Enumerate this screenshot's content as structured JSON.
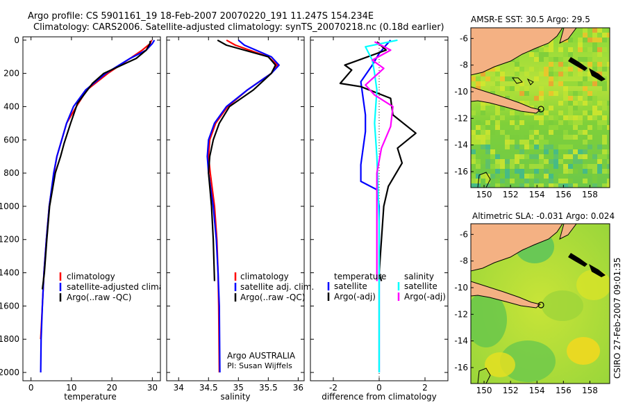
{
  "header": {
    "line1": "Argo profile: CS 5901161_19 18-Feb-2007 20070220_191 11.247S 154.234E",
    "line2": "Climatology: CARS2006. Satellite-adjusted climatology: synTS_20070218.nc (0.18d earlier)"
  },
  "side_label": "CSIRO 27-Feb-2007 09:01:35",
  "colors": {
    "clim": "#ff0000",
    "sat": "#0000ff",
    "argo": "#000000",
    "magenta": "#ff00ff",
    "cyan": "#00ffff",
    "land": "#f4b183",
    "sea_green": "#66cc33",
    "sea_yellow": "#ddee22"
  },
  "chart_data": [
    {
      "id": "temperature",
      "type": "line",
      "xlabel": "temperature",
      "xlim": [
        -2,
        32
      ],
      "ylim": [
        2050,
        -20
      ],
      "xticks": [
        0,
        10,
        20,
        30
      ],
      "yticks": [
        0,
        200,
        400,
        600,
        800,
        1000,
        1200,
        1400,
        1600,
        1800,
        2000
      ],
      "legend": [
        "climatology",
        "satellite-adjusted climatology",
        "Argo(..raw -QC)"
      ],
      "series": [
        {
          "name": "climatology",
          "color": "#ff0000",
          "x": [
            29.8,
            29.5,
            27.5,
            24.5,
            19,
            13.8,
            11.2,
            8.8,
            7.6,
            6.4,
            5.7,
            4.5,
            3.8,
            3.2,
            2.8,
            2.4
          ],
          "y": [
            0,
            20,
            60,
            110,
            200,
            300,
            400,
            500,
            600,
            700,
            800,
            1000,
            1200,
            1400,
            1600,
            1800
          ]
        },
        {
          "name": "satellite-adjusted climatology",
          "color": "#0000ff",
          "x": [
            30.5,
            30,
            28.5,
            24.5,
            18.5,
            13.5,
            10.5,
            8.8,
            7.6,
            6.4,
            5.6,
            4.5,
            3.8,
            3.2,
            2.8,
            2.5,
            2.4
          ],
          "y": [
            0,
            20,
            60,
            110,
            200,
            300,
            400,
            500,
            600,
            700,
            800,
            1000,
            1200,
            1400,
            1600,
            1800,
            2000
          ]
        },
        {
          "name": "Argo(..raw -QC)",
          "color": "#000000",
          "x": [
            29.5,
            29.4,
            28.5,
            26,
            18,
            15.2,
            11.5,
            9.8,
            8.2,
            7.3,
            6,
            4.6,
            3.9,
            3.3,
            2.8
          ],
          "y": [
            5,
            20,
            60,
            110,
            200,
            260,
            380,
            500,
            620,
            700,
            800,
            1000,
            1200,
            1400,
            1500
          ]
        }
      ]
    },
    {
      "id": "salinity",
      "type": "line",
      "xlabel": "salinity",
      "xlim": [
        33.8,
        36.1
      ],
      "ylim": [
        2050,
        -20
      ],
      "xticks": [
        34,
        34.5,
        35,
        35.5,
        36
      ],
      "yticks": [
        0,
        200,
        400,
        600,
        800,
        1000,
        1200,
        1400,
        1600,
        1800,
        2000
      ],
      "legend": [
        "climatology",
        "satellite adj. clim.",
        "Argo(..raw -QC)"
      ],
      "annotation": [
        "Argo AUSTRALIA",
        "PI: Susan Wijffels"
      ],
      "series": [
        {
          "name": "climatology",
          "color": "#ff0000",
          "x": [
            34.8,
            34.95,
            35.5,
            35.65,
            35.55,
            35.15,
            34.82,
            34.62,
            34.52,
            34.5,
            34.53,
            34.6,
            34.64,
            34.66,
            34.67,
            34.68
          ],
          "y": [
            0,
            30,
            100,
            150,
            200,
            300,
            400,
            500,
            600,
            700,
            800,
            1000,
            1200,
            1400,
            1600,
            2000
          ]
        },
        {
          "name": "satellite adj. clim.",
          "color": "#0000ff",
          "x": [
            35.0,
            35.1,
            35.55,
            35.68,
            35.55,
            35.15,
            34.8,
            34.6,
            34.5,
            34.48,
            34.5,
            34.58,
            34.63,
            34.66,
            34.68,
            34.69
          ],
          "y": [
            0,
            30,
            100,
            150,
            200,
            300,
            400,
            500,
            600,
            700,
            800,
            1000,
            1200,
            1400,
            1600,
            2000
          ]
        },
        {
          "name": "Argo(..raw -QC)",
          "color": "#000000",
          "x": [
            34.65,
            34.8,
            35.5,
            35.62,
            35.55,
            35.25,
            34.85,
            34.68,
            34.58,
            34.52,
            34.5,
            34.55,
            34.58,
            34.6
          ],
          "y": [
            0,
            30,
            100,
            150,
            200,
            300,
            400,
            500,
            600,
            700,
            800,
            1000,
            1200,
            1450
          ]
        }
      ]
    },
    {
      "id": "difference",
      "type": "line",
      "xlabel": "difference from climatology",
      "xlim": [
        -3,
        3
      ],
      "ylim": [
        2050,
        -20
      ],
      "xticks": [
        -2,
        0,
        2
      ],
      "yticks": [
        0,
        200,
        400,
        600,
        800,
        1000,
        1200,
        1400,
        1600,
        1800,
        2000
      ],
      "legend": [
        "temperature",
        "satellite",
        "Argo(-adj)",
        "salinity",
        "satellite",
        "Argo(-adj)"
      ],
      "series": [
        {
          "name": "temperature satellite",
          "color": "#0000ff",
          "x": [
            0.5,
            0.3,
            0,
            -0.3,
            -0.8,
            -0.7,
            -0.6,
            -0.6,
            -0.7,
            -0.8,
            -0.8,
            -0.1,
            0,
            0,
            0,
            0
          ],
          "y": [
            0,
            30,
            80,
            150,
            250,
            350,
            450,
            550,
            650,
            750,
            850,
            900,
            1000,
            1200,
            1500,
            2000
          ]
        },
        {
          "name": "temperature Argo(-adj)",
          "color": "#000000",
          "x": [
            -0.1,
            0.3,
            -1.5,
            -1.2,
            -1.7,
            -0.8,
            0.5,
            0.6,
            1.6,
            0.8,
            1.0,
            0.4,
            0.2,
            0.1,
            0.0,
            0.1
          ],
          "y": [
            10,
            60,
            150,
            180,
            260,
            280,
            350,
            450,
            560,
            650,
            740,
            880,
            1000,
            1200,
            1400,
            1450
          ]
        },
        {
          "name": "salinity satellite",
          "color": "#00ffff",
          "x": [
            0.8,
            -0.6,
            -0.3,
            -0.2,
            -0.1,
            -0.2,
            -0.1,
            -0.05,
            0,
            0,
            0,
            0
          ],
          "y": [
            0,
            40,
            120,
            200,
            300,
            500,
            700,
            900,
            1100,
            1400,
            1700,
            2000
          ]
        },
        {
          "name": "salinity Argo(-adj)",
          "color": "#ff00ff",
          "x": [
            -0.2,
            0.5,
            -0.3,
            0.2,
            -0.6,
            -0.2,
            0.6,
            0.5,
            0.1,
            -0.1,
            -0.1,
            -0.1,
            -0.1
          ],
          "y": [
            10,
            60,
            120,
            170,
            270,
            330,
            400,
            520,
            650,
            800,
            1000,
            1200,
            1450
          ]
        }
      ]
    },
    {
      "id": "sst_map",
      "type": "heatmap",
      "title": "AMSR-E SST: 30.5 Argo: 29.5",
      "xticks": [
        150,
        152,
        154,
        156,
        158
      ],
      "yticks": [
        -6,
        -8,
        -10,
        -12,
        -14,
        -16
      ]
    },
    {
      "id": "sla_map",
      "type": "heatmap",
      "title": "Altimetric SLA: -0.031 Argo: 0.024",
      "xticks": [
        150,
        152,
        154,
        156,
        158
      ],
      "yticks": [
        -6,
        -8,
        -10,
        -12,
        -14,
        -16
      ]
    }
  ]
}
